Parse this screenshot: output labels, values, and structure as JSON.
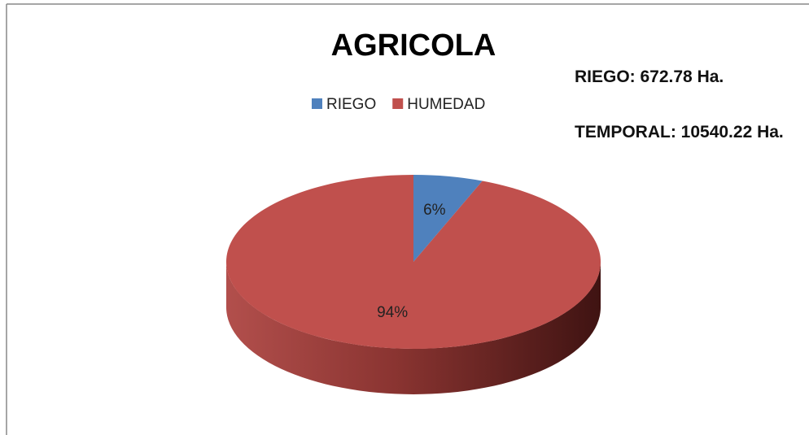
{
  "chart_data": {
    "type": "pie",
    "title": "AGRICOLA",
    "categories": [
      "RIEGO",
      "HUMEDAD"
    ],
    "values": [
      6,
      94
    ],
    "value_labels": [
      "6%",
      "94%"
    ],
    "colors": [
      "#4f81bd",
      "#c0504d"
    ],
    "annotations": [
      "RIEGO: 672.78 Ha.",
      "TEMPORAL: 10540.22 Ha."
    ],
    "legend": "top"
  }
}
